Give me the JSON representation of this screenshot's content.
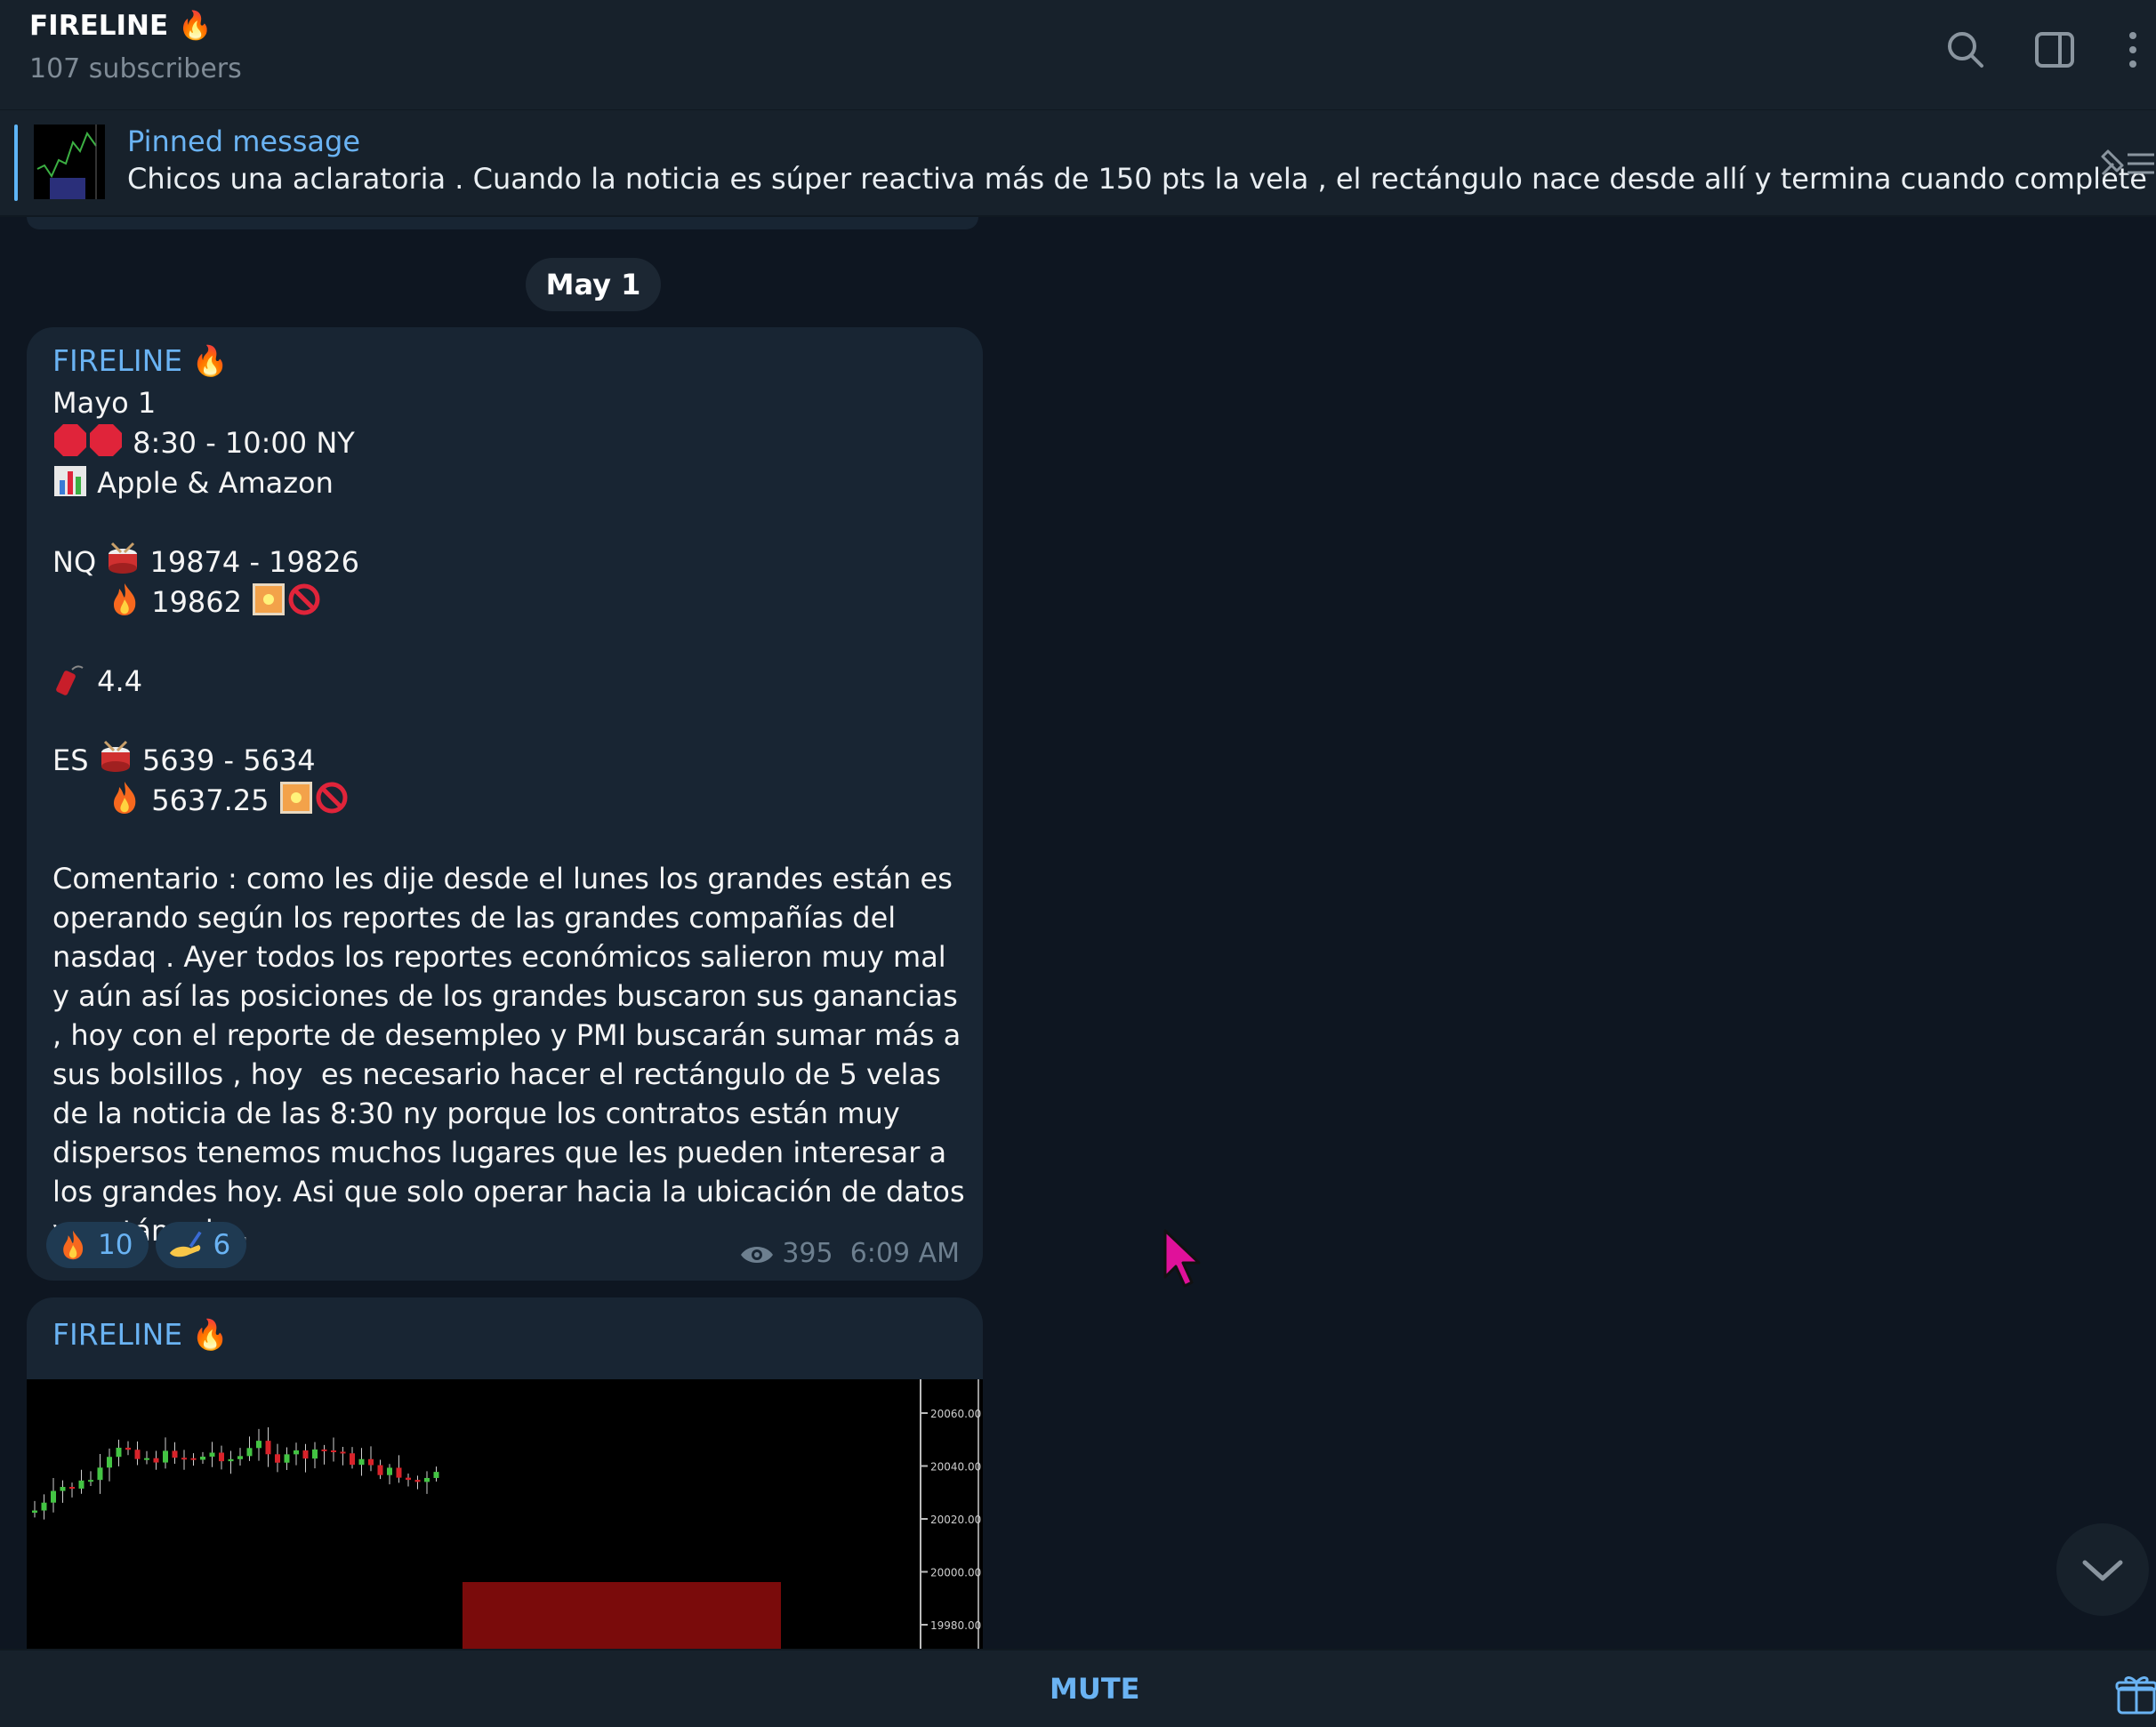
{
  "header": {
    "title": "FIRELINE 🔥",
    "subscribers": "107 subscribers",
    "icons": [
      "search-icon",
      "sidebar-toggle-icon",
      "more-vertical-icon"
    ]
  },
  "pinned": {
    "label": "Pinned message",
    "text": "Chicos una aclaratoria .  Cuando la noticia es súper reactiva más de 150 pts la vela , el rectángulo nace desde allí y termina cuando complete las..."
  },
  "date_chip": "May 1",
  "messages": [
    {
      "author": "FIRELINE 🔥",
      "lines": [
        "Mayo 1",
        "8:30 - 10:00 NY",
        "Apple & Amazon",
        "",
        "NQ",
        "19874 - 19826",
        "19862",
        "",
        "4.4",
        "",
        "ES",
        "5639 - 5634",
        "5637.25",
        ""
      ],
      "comment": "Comentario : como les dije desde el lunes los grandes están es operando según los reportes de las grandes compañías del nasdaq . Ayer todos los reportes económicos salieron muy mal y aún así las posiciones de los grandes buscaron sus ganancias , hoy con el reporte de desempleo y PMI buscarán sumar más a sus bolsillos , hoy  es necesario hacer el rectángulo de 5 velas de la noticia de las 8:30 ny porque los contratos están muy dispersos tenemos muchos lugares que les pueden interesar a los grandes hoy. Asi que solo operar hacia la ubicación de datos y rectángulo .",
      "reactions": [
        {
          "icon": "fire-icon",
          "count": "10"
        },
        {
          "icon": "writing-hand-icon",
          "count": "6"
        }
      ],
      "views": "395",
      "time": "6:09 AM"
    },
    {
      "author": "FIRELINE 🔥",
      "chart_price_labels": [
        "20060.00",
        "20040.00",
        "20020.00",
        "20000.00",
        "19980.00"
      ]
    }
  ],
  "bottom": {
    "mute_label": "MUTE"
  },
  "colors": {
    "accent": "#6ab3f3",
    "bubble": "#182533",
    "bg": "#0e1621",
    "header": "#17212b"
  }
}
